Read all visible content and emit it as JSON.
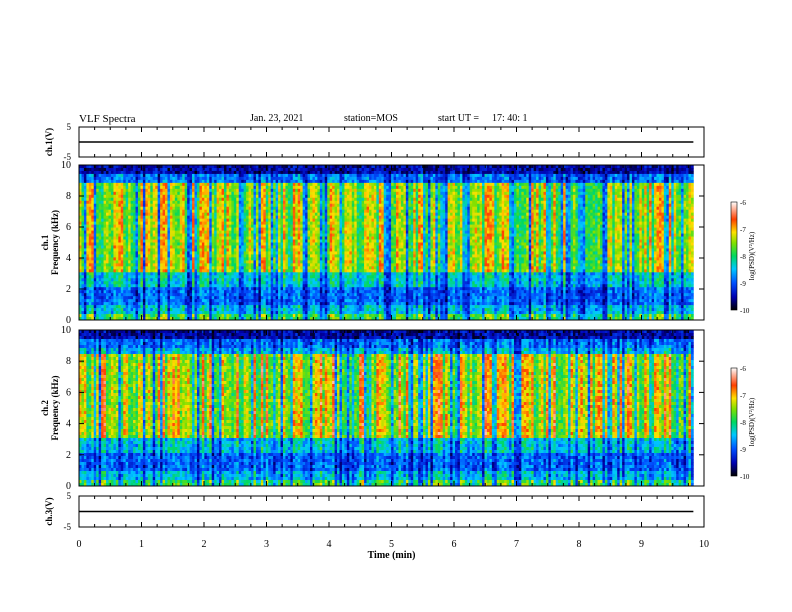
{
  "header": {
    "title": "VLF Spectra",
    "date": "Jan. 23, 2021",
    "station": "station=MOS",
    "start_label": "start  UT =",
    "start_time": "17: 40: 1"
  },
  "chart_data": [
    {
      "type": "line",
      "panel": "ch.1 voltage",
      "ylabel": "ch.1(V)",
      "ylim": [
        -5,
        5
      ],
      "yticks": [
        "5",
        "-5"
      ],
      "xlim": [
        0,
        10
      ],
      "series": [
        {
          "x": [
            0,
            9.83
          ],
          "y": [
            0,
            0
          ]
        }
      ]
    },
    {
      "type": "heatmap",
      "panel": "ch.1 spectrogram",
      "ylabel_channel": "ch.1",
      "ylabel": "Frequency (kHz)",
      "ylim": [
        0,
        10
      ],
      "yticks": [
        "0",
        "2",
        "4",
        "6",
        "8",
        "10"
      ],
      "xlim": [
        0,
        10
      ],
      "data_xmax": 9.83,
      "colorbar": {
        "range": [
          -10,
          -6
        ],
        "ticks": [
          "-6",
          "-7",
          "-8",
          "-9",
          "-10"
        ],
        "label": "log(PSD)(V²/Hz)"
      },
      "dominant_band_khz": [
        3,
        9
      ]
    },
    {
      "type": "heatmap",
      "panel": "ch.2 spectrogram",
      "ylabel_channel": "ch.2",
      "ylabel": "Frequency (kHz)",
      "ylim": [
        0,
        10
      ],
      "yticks": [
        "0",
        "2",
        "4",
        "6",
        "8",
        "10"
      ],
      "xlim": [
        0,
        10
      ],
      "data_xmax": 9.83,
      "colorbar": {
        "range": [
          -10,
          -6
        ],
        "ticks": [
          "-6",
          "-7",
          "-8",
          "-9",
          "-10"
        ],
        "label": "log(PSD)(V²/Hz)"
      },
      "dominant_band_khz": [
        3,
        8.5
      ]
    },
    {
      "type": "line",
      "panel": "ch.3 voltage",
      "ylabel": "ch.3(V)",
      "ylim": [
        -5,
        5
      ],
      "yticks": [
        "5",
        "-5"
      ],
      "xlim": [
        0,
        10
      ],
      "series": [
        {
          "x": [
            0,
            9.83
          ],
          "y": [
            0,
            0
          ]
        }
      ],
      "xlabel": "Time (min)",
      "xticks": [
        "0",
        "1",
        "2",
        "3",
        "4",
        "5",
        "6",
        "7",
        "8",
        "9",
        "10"
      ]
    }
  ]
}
